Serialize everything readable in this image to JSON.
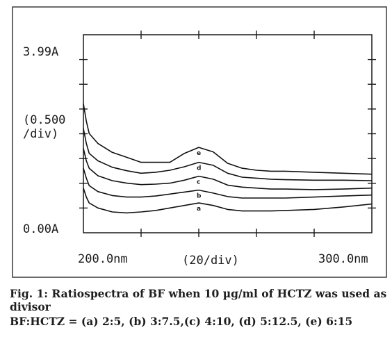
{
  "chart_data": {
    "type": "line",
    "x_range": [
      200,
      300
    ],
    "y_range": [
      0,
      3.99
    ],
    "y_top_label": "3.99A",
    "y_bottom_label": "0.00A",
    "y_scale_label": "(0.500\n/div)",
    "x_left_label": "200.0nm",
    "x_center_label": "(20/div)",
    "x_right_label": "300.0nm",
    "grid": false,
    "legend": "none",
    "series": [
      {
        "name": "e",
        "x": [
          200,
          201,
          202,
          205,
          210,
          215,
          220,
          225,
          230,
          235,
          240,
          245,
          250,
          255,
          260,
          265,
          270,
          280,
          290,
          300
        ],
        "y": [
          2.6,
          2.25,
          2.0,
          1.8,
          1.62,
          1.52,
          1.42,
          1.42,
          1.42,
          1.6,
          1.72,
          1.63,
          1.4,
          1.3,
          1.26,
          1.24,
          1.24,
          1.22,
          1.2,
          1.18
        ]
      },
      {
        "name": "d",
        "x": [
          200,
          201,
          202,
          205,
          210,
          215,
          220,
          225,
          230,
          235,
          240,
          245,
          250,
          255,
          260,
          265,
          270,
          280,
          290,
          300
        ],
        "y": [
          2.1,
          1.8,
          1.6,
          1.45,
          1.32,
          1.25,
          1.2,
          1.22,
          1.26,
          1.33,
          1.42,
          1.36,
          1.2,
          1.12,
          1.1,
          1.08,
          1.07,
          1.06,
          1.06,
          1.05
        ]
      },
      {
        "name": "c",
        "x": [
          200,
          201,
          202,
          205,
          210,
          215,
          220,
          225,
          230,
          235,
          240,
          245,
          250,
          255,
          260,
          265,
          270,
          280,
          290,
          300
        ],
        "y": [
          1.7,
          1.45,
          1.3,
          1.15,
          1.05,
          1.0,
          0.97,
          0.98,
          1.0,
          1.06,
          1.14,
          1.08,
          0.96,
          0.92,
          0.9,
          0.88,
          0.88,
          0.87,
          0.88,
          0.9
        ]
      },
      {
        "name": "b",
        "x": [
          200,
          201,
          202,
          205,
          210,
          215,
          220,
          225,
          230,
          235,
          240,
          245,
          250,
          255,
          260,
          265,
          270,
          280,
          290,
          300
        ],
        "y": [
          1.3,
          1.1,
          0.95,
          0.83,
          0.75,
          0.72,
          0.72,
          0.74,
          0.78,
          0.82,
          0.86,
          0.8,
          0.73,
          0.7,
          0.7,
          0.7,
          0.7,
          0.72,
          0.74,
          0.76
        ]
      },
      {
        "name": "a",
        "x": [
          200,
          201,
          202,
          205,
          210,
          215,
          220,
          225,
          230,
          235,
          240,
          245,
          250,
          255,
          260,
          265,
          270,
          280,
          290,
          300
        ],
        "y": [
          0.9,
          0.72,
          0.6,
          0.5,
          0.42,
          0.4,
          0.42,
          0.45,
          0.5,
          0.55,
          0.6,
          0.55,
          0.47,
          0.44,
          0.44,
          0.44,
          0.45,
          0.47,
          0.52,
          0.58
        ]
      }
    ]
  },
  "caption": {
    "line1": "Fig. 1: Ratiospectra of BF when 10 µg/ml of HCTZ was used as divisor",
    "line2": "BF:HCTZ = (a) 2:5, (b) 3:7.5,(c) 4:10, (d) 5:12.5, (e) 6:15"
  }
}
